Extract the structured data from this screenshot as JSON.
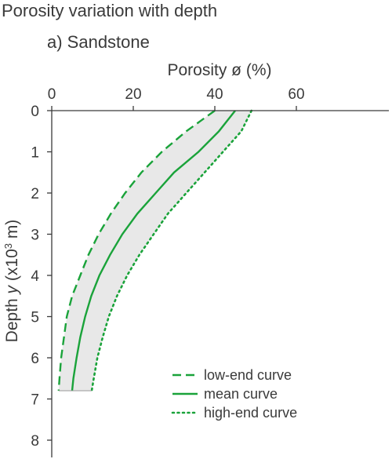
{
  "figure_title": "Porosity variation with depth",
  "panel_title": "a) Sandstone",
  "colors": {
    "curve": "#1aa33a",
    "band": "#e8e8e8",
    "axis": "#3a3a3a"
  },
  "chart_data": {
    "type": "line",
    "title": "a) Sandstone",
    "xlabel": "Porosity ø (%)",
    "ylabel_parts": [
      "Depth ",
      "y",
      " (x10",
      "3",
      " m)"
    ],
    "x_axis_position": "top",
    "xlim": [
      0,
      80
    ],
    "ylim": [
      0,
      8.5
    ],
    "xticks": [
      0,
      20,
      40,
      60
    ],
    "yticks": [
      0,
      1,
      2,
      3,
      4,
      5,
      6,
      7,
      8
    ],
    "grid": false,
    "legend_position": "bottom-right",
    "shaded_band": {
      "between": [
        "low-end curve",
        "high-end curve"
      ],
      "color": "#e8e8e8"
    },
    "series": [
      {
        "name": "low-end curve",
        "style": "dashed",
        "color": "#1aa33a",
        "points": [
          [
            40,
            0
          ],
          [
            33,
            0.5
          ],
          [
            27,
            1
          ],
          [
            22,
            1.5
          ],
          [
            18,
            2
          ],
          [
            14.5,
            2.5
          ],
          [
            11.5,
            3
          ],
          [
            9,
            3.5
          ],
          [
            7,
            4
          ],
          [
            5,
            4.5
          ],
          [
            3.7,
            5
          ],
          [
            3,
            5.5
          ],
          [
            2.3,
            6
          ],
          [
            1.9,
            6.5
          ],
          [
            1.7,
            6.8
          ]
        ]
      },
      {
        "name": "mean curve",
        "style": "solid",
        "color": "#1aa33a",
        "points": [
          [
            45,
            0
          ],
          [
            41,
            0.5
          ],
          [
            36,
            1
          ],
          [
            30,
            1.5
          ],
          [
            25.5,
            2
          ],
          [
            21,
            2.5
          ],
          [
            17.3,
            3
          ],
          [
            14.3,
            3.5
          ],
          [
            11.7,
            4
          ],
          [
            9.7,
            4.5
          ],
          [
            8.2,
            5
          ],
          [
            7,
            5.5
          ],
          [
            6.1,
            6
          ],
          [
            5.3,
            6.5
          ],
          [
            5,
            6.8
          ]
        ]
      },
      {
        "name": "high-end curve",
        "style": "dotted",
        "color": "#1aa33a",
        "points": [
          [
            49,
            0
          ],
          [
            46.5,
            0.5
          ],
          [
            42,
            1
          ],
          [
            37.5,
            1.5
          ],
          [
            33,
            2
          ],
          [
            28.5,
            2.5
          ],
          [
            25,
            3
          ],
          [
            21.5,
            3.5
          ],
          [
            18.5,
            4
          ],
          [
            16,
            4.5
          ],
          [
            14,
            5
          ],
          [
            12.5,
            5.5
          ],
          [
            11.2,
            6
          ],
          [
            10.3,
            6.5
          ],
          [
            9.8,
            6.8
          ]
        ]
      }
    ]
  }
}
